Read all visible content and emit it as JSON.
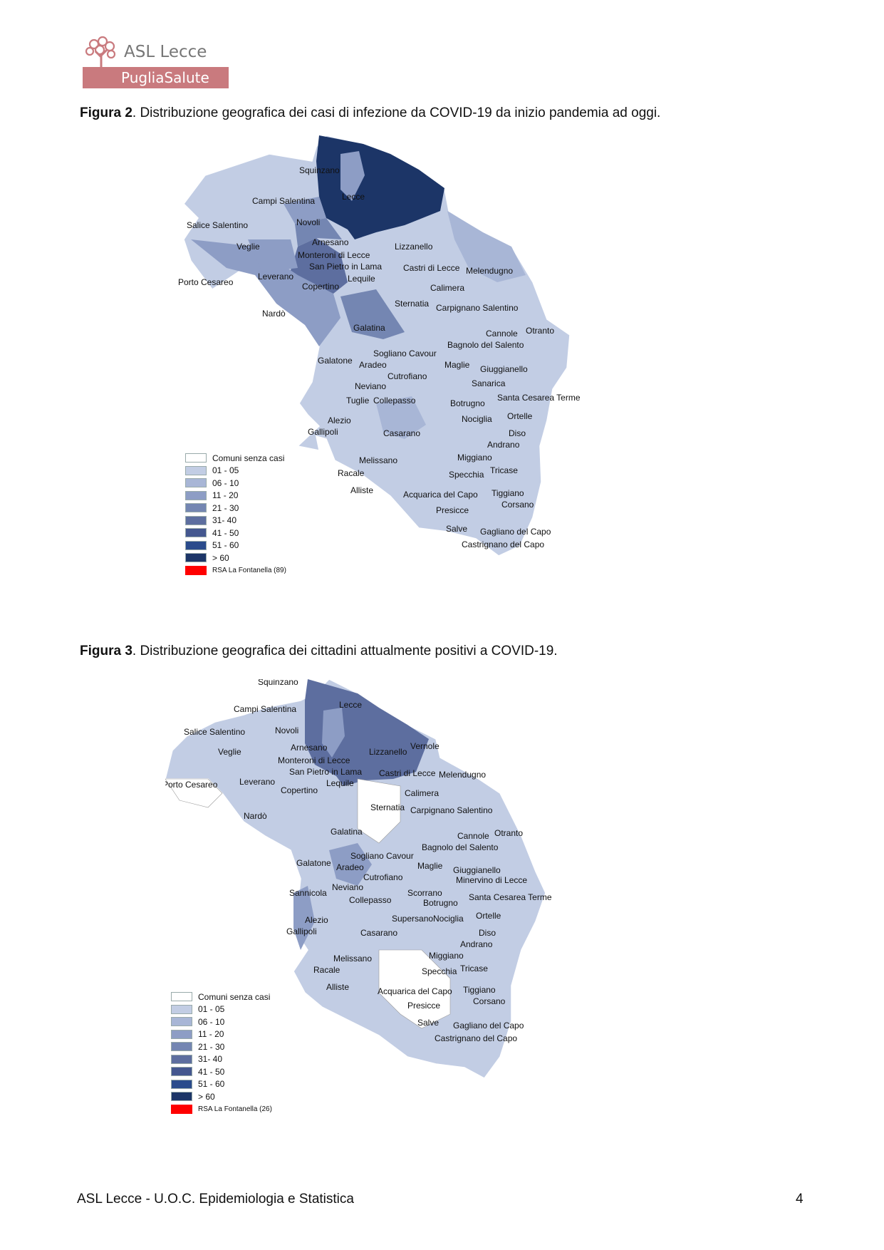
{
  "header": {
    "logo_line1": "ASL Lecce",
    "logo_line2": "PugliaSalute"
  },
  "figure2": {
    "label": "Figura 2",
    "caption": ". Distribuzione  geografica dei  casi di infezione  da  COVID-19 da inizio pandemia ad oggi.",
    "legend": [
      {
        "label": "Comuni senza casi",
        "color": "#ffffff"
      },
      {
        "label": "01 - 05",
        "color": "#c2cde4"
      },
      {
        "label": "06 - 10",
        "color": "#a8b6d6"
      },
      {
        "label": "11 - 20",
        "color": "#8d9dc5"
      },
      {
        "label": "21 - 30",
        "color": "#7486b2"
      },
      {
        "label": "31- 40",
        "color": "#5d6e9f"
      },
      {
        "label": "41 - 50",
        "color": "#44578f"
      },
      {
        "label": "51 - 60",
        "color": "#2a4b8c"
      },
      {
        "label": "> 60",
        "color": "#1c3567"
      },
      {
        "label": "RSA La Fontanella (89)",
        "color": "#ff0000"
      }
    ],
    "places": [
      "Squinzano",
      "Campi Salentina",
      "Lecce",
      "Salice Salentino",
      "Novoli",
      "Veglie",
      "Arnesano",
      "Lizzanello",
      "Monteroni di Lecce",
      "San Pietro in Lama",
      "Castri di Lecce",
      "Melendugno",
      "Porto Cesareo",
      "Leverano",
      "Lequile",
      "Copertino",
      "Calimera",
      "Sternatia",
      "Carpignano Salentino",
      "Nardò",
      "Galatina",
      "Cannole",
      "Otranto",
      "Bagnolo del Salento",
      "Sogliano Cavour",
      "Galatone",
      "Aradeo",
      "Maglie",
      "Giuggianello",
      "Cutrofiano",
      "Sanarica",
      "Neviano",
      "Tuglie",
      "Collepasso",
      "Botrugno",
      "Santa Cesarea Terme",
      "Nociglia",
      "Ortelle",
      "Alezio",
      "Gallipoli",
      "Casarano",
      "Diso",
      "Andrano",
      "Melissano",
      "Miggiano",
      "Racale",
      "Specchia",
      "Tricase",
      "Alliste",
      "Acquarica del Capo",
      "Tiggiano",
      "Corsano",
      "Presicce",
      "Salve",
      "Gagliano del Capo",
      "Castrignano del Capo"
    ]
  },
  "figure3": {
    "label": "Figura 3",
    "caption": ". Distribuzione  geografica dei cittadini attualmente positivi a COVID-19.",
    "legend": [
      {
        "label": "Comuni senza casi",
        "color": "#ffffff"
      },
      {
        "label": "01 - 05",
        "color": "#c2cde4"
      },
      {
        "label": "06 - 10",
        "color": "#a8b6d6"
      },
      {
        "label": "11 - 20",
        "color": "#8d9dc5"
      },
      {
        "label": "21 - 30",
        "color": "#7486b2"
      },
      {
        "label": "31- 40",
        "color": "#5d6e9f"
      },
      {
        "label": "41 - 50",
        "color": "#44578f"
      },
      {
        "label": "51 - 60",
        "color": "#2a4b8c"
      },
      {
        "label": "> 60",
        "color": "#1c3567"
      },
      {
        "label": "RSA La Fontanella (26)",
        "color": "#ff0000"
      }
    ],
    "places": [
      "Squinzano",
      "Campi Salentina",
      "Lecce",
      "Salice Salentino",
      "Novoli",
      "Veglie",
      "Arnesano",
      "Lizzanello",
      "Vernole",
      "Monteroni di Lecce",
      "San Pietro in Lama",
      "Castri di Lecce",
      "Melendugno",
      "Porto Cesareo",
      "Leverano",
      "Lequile",
      "Copertino",
      "Calimera",
      "Sternatia",
      "Carpignano Salentino",
      "Nardò",
      "Galatina",
      "Cannole",
      "Otranto",
      "Bagnolo del Salento",
      "Sogliano Cavour",
      "Galatone",
      "Aradeo",
      "Maglie",
      "Giuggianello",
      "Minervino di Lecce",
      "Cutrofiano",
      "Sannicola",
      "Neviano",
      "Scorrano",
      "Collepasso",
      "Botrugno",
      "Santa Cesarea Terme",
      "Supersano",
      "Nociglia",
      "Ortelle",
      "Alezio",
      "Gallipoli",
      "Casarano",
      "Diso",
      "Andrano",
      "Melissano",
      "Miggiano",
      "Racale",
      "Specchia",
      "Tricase",
      "Alliste",
      "Acquarica del Capo",
      "Tiggiano",
      "Corsano",
      "Presicce",
      "Salve",
      "Gagliano del Capo",
      "Castrignano del Capo"
    ]
  },
  "footer": {
    "text": "ASL Lecce - U.O.C. Epidemiologia e Statistica",
    "page": "4"
  }
}
